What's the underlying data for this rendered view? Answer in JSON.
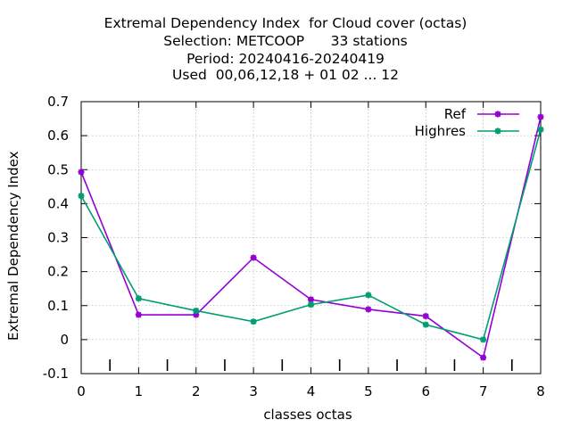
{
  "title_lines": [
    "Extremal Dependency Index  for Cloud cover (octas)",
    "Selection: METCOOP      33 stations",
    "Period: 20240416-20240419",
    "Used  00,06,12,18 + 01 02 ... 12"
  ],
  "chart_data": {
    "type": "line",
    "xlabel": "classes octas",
    "ylabel": "Extremal Dependency Index",
    "xlim": [
      0,
      8
    ],
    "ylim": [
      -0.1,
      0.7
    ],
    "x_ticks": [
      0,
      1,
      2,
      3,
      4,
      5,
      6,
      7,
      8
    ],
    "y_ticks": [
      -0.1,
      0,
      0.1,
      0.2,
      0.3,
      0.4,
      0.5,
      0.6,
      0.7
    ],
    "y_tick_labels": [
      "-0.1",
      "0",
      "0.1",
      "0.2",
      "0.3",
      "0.4",
      "0.5",
      "0.6",
      "0.7"
    ],
    "minor_marks_x": [
      0.5,
      1.5,
      2.5,
      3.5,
      4.5,
      5.5,
      6.5,
      7.5
    ],
    "grid": true,
    "legend_position": "top-right",
    "x": [
      0,
      1,
      2,
      3,
      4,
      5,
      6,
      7,
      8
    ],
    "series": [
      {
        "name": "Ref",
        "color": "#9400d3",
        "values": [
          0.493,
          0.073,
          0.073,
          0.241,
          0.118,
          0.089,
          0.069,
          -0.053,
          0.655
        ]
      },
      {
        "name": "Highres",
        "color": "#009e73",
        "values": [
          0.423,
          0.121,
          0.085,
          0.053,
          0.103,
          0.131,
          0.044,
          0.0,
          0.618
        ]
      }
    ]
  }
}
